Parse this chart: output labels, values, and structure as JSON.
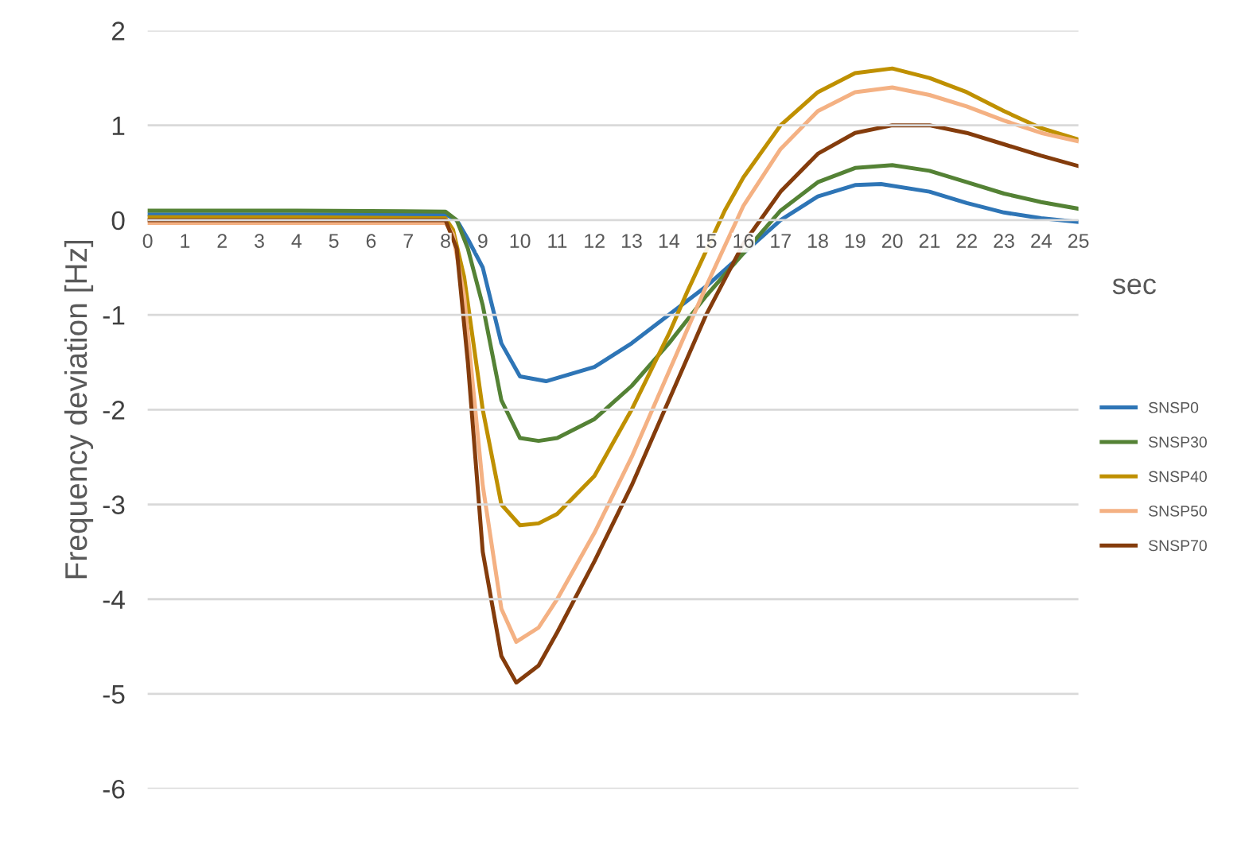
{
  "chart_data": {
    "type": "line",
    "ylabel": "Frequency deviation [Hz]",
    "xlabel": "sec",
    "xlim": [
      0,
      25
    ],
    "xticks": [
      0,
      1,
      2,
      3,
      4,
      5,
      6,
      7,
      8,
      9,
      10,
      11,
      12,
      13,
      14,
      15,
      16,
      17,
      18,
      19,
      20,
      21,
      22,
      23,
      24,
      25
    ],
    "ylim": [
      -6,
      2
    ],
    "yticks": [
      -6,
      -5,
      -4,
      -3,
      -2,
      -1,
      0,
      1,
      2
    ],
    "grid": "y",
    "legend": "right",
    "marker": "none",
    "line_style": "solid",
    "series": [
      {
        "name": "SNSP0",
        "color": "#2e75b6",
        "x": [
          0,
          4,
          8,
          8.3,
          8.6,
          9,
          9.5,
          10,
          10.7,
          12,
          13,
          14,
          15,
          16,
          17,
          18,
          19,
          19.7,
          21,
          22,
          23,
          24,
          25
        ],
        "values": [
          0.06,
          0.06,
          0.06,
          0.0,
          -0.2,
          -0.5,
          -1.3,
          -1.65,
          -1.7,
          -1.55,
          -1.3,
          -1.0,
          -0.7,
          -0.35,
          0.0,
          0.25,
          0.37,
          0.38,
          0.3,
          0.18,
          0.08,
          0.02,
          -0.02
        ]
      },
      {
        "name": "SNSP30",
        "color": "#548235",
        "x": [
          0,
          4,
          8,
          8.3,
          8.6,
          9,
          9.5,
          10,
          10.5,
          11,
          12,
          13,
          14,
          15,
          16,
          17,
          18,
          19,
          20,
          21,
          22,
          23,
          24,
          25
        ],
        "values": [
          0.1,
          0.1,
          0.09,
          0.0,
          -0.3,
          -0.9,
          -1.9,
          -2.3,
          -2.33,
          -2.3,
          -2.1,
          -1.75,
          -1.3,
          -0.8,
          -0.35,
          0.1,
          0.4,
          0.55,
          0.58,
          0.52,
          0.4,
          0.28,
          0.19,
          0.12
        ]
      },
      {
        "name": "SNSP40",
        "color": "#bf9000",
        "x": [
          0,
          4,
          8,
          8.2,
          8.5,
          9,
          9.5,
          10,
          10.5,
          11,
          12,
          13,
          14,
          14.5,
          15.5,
          16,
          17,
          18,
          19,
          20,
          21,
          22,
          23,
          24,
          25
        ],
        "values": [
          0.03,
          0.03,
          0.02,
          -0.1,
          -0.6,
          -2.0,
          -3.0,
          -3.22,
          -3.2,
          -3.1,
          -2.7,
          -2.0,
          -1.2,
          -0.75,
          0.1,
          0.45,
          1.0,
          1.35,
          1.55,
          1.6,
          1.5,
          1.35,
          1.15,
          0.97,
          0.85
        ]
      },
      {
        "name": "SNSP50",
        "color": "#f4b183",
        "x": [
          0,
          4,
          8,
          8.2,
          8.5,
          9,
          9.5,
          9.9,
          10.5,
          11,
          12,
          13,
          14,
          15,
          16,
          17,
          18,
          19,
          20,
          21,
          22,
          23,
          24,
          25
        ],
        "values": [
          -0.03,
          -0.03,
          -0.03,
          -0.15,
          -0.8,
          -2.8,
          -4.1,
          -4.45,
          -4.3,
          -4.0,
          -3.3,
          -2.5,
          -1.6,
          -0.7,
          0.15,
          0.75,
          1.15,
          1.35,
          1.4,
          1.32,
          1.2,
          1.05,
          0.92,
          0.83
        ]
      },
      {
        "name": "SNSP70",
        "color": "#843c0c",
        "x": [
          0,
          4,
          8,
          8.3,
          8.6,
          9,
          9.5,
          9.9,
          10.5,
          11,
          12,
          13,
          14,
          15,
          16,
          17,
          18,
          19,
          20,
          21,
          22,
          23,
          24,
          25
        ],
        "values": [
          0.0,
          0.0,
          0.0,
          -0.3,
          -1.5,
          -3.5,
          -4.6,
          -4.88,
          -4.7,
          -4.35,
          -3.6,
          -2.8,
          -1.9,
          -1.0,
          -0.25,
          0.3,
          0.7,
          0.92,
          1.0,
          1.0,
          0.92,
          0.8,
          0.68,
          0.57
        ]
      }
    ]
  }
}
